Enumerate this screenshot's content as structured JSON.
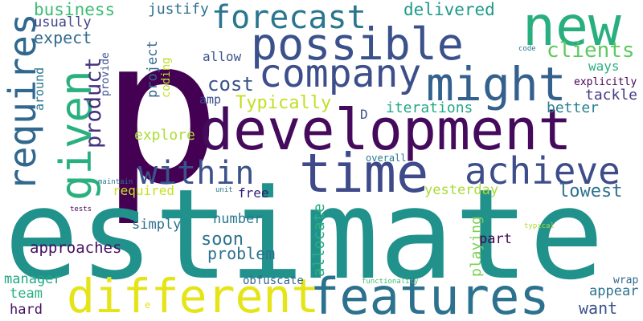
{
  "words": [
    {
      "text": "p",
      "color": "#440154"
    },
    {
      "text": "estimate",
      "color": "#21918c"
    },
    {
      "text": "development",
      "color": "#450a5c"
    },
    {
      "text": "new",
      "color": "#29af7f"
    },
    {
      "text": "possible",
      "color": "#3b518b"
    },
    {
      "text": "time",
      "color": "#3e4a89"
    },
    {
      "text": "features",
      "color": "#2c728e"
    },
    {
      "text": "different",
      "color": "#e5e419"
    },
    {
      "text": "might",
      "color": "#34608d"
    },
    {
      "text": "company",
      "color": "#3c4f8a"
    },
    {
      "text": "given",
      "color": "#2ab07f"
    },
    {
      "text": "requires",
      "color": "#31688e"
    },
    {
      "text": "achieve",
      "color": "#3d4d8a"
    },
    {
      "text": "within",
      "color": "#3b528b"
    },
    {
      "text": "forecast",
      "color": "#2a768e"
    },
    {
      "text": "clients",
      "color": "#5ec962"
    },
    {
      "text": "product",
      "color": "#46327e"
    },
    {
      "text": "cost",
      "color": "#3b528b"
    },
    {
      "text": "lowest",
      "color": "#2c718e"
    },
    {
      "text": "business",
      "color": "#3dbc74"
    },
    {
      "text": "delivered",
      "color": "#1f998a"
    },
    {
      "text": "Typically",
      "color": "#c2df23"
    },
    {
      "text": "iterations",
      "color": "#22a884"
    },
    {
      "text": "expect",
      "color": "#2f6b8e"
    },
    {
      "text": "justify",
      "color": "#2d708e"
    },
    {
      "text": "usually",
      "color": "#3f4788"
    },
    {
      "text": "approaches",
      "color": "#471063"
    },
    {
      "text": "want",
      "color": "#3b528b"
    },
    {
      "text": "soon",
      "color": "#2c738e"
    },
    {
      "text": "problem",
      "color": "#2c728e"
    },
    {
      "text": "explore",
      "color": "#addc30"
    },
    {
      "text": "tackle",
      "color": "#443a83"
    },
    {
      "text": "better",
      "color": "#26828e"
    },
    {
      "text": "ways",
      "color": "#2ab07f"
    },
    {
      "text": "allocate",
      "color": "#2ab07f"
    },
    {
      "text": "playing",
      "color": "#7ad151"
    },
    {
      "text": "project",
      "color": "#31688e"
    },
    {
      "text": "yesterday",
      "color": "#a8db34"
    },
    {
      "text": "required",
      "color": "#c8e020"
    },
    {
      "text": "free",
      "color": "#2d1e72"
    },
    {
      "text": "number",
      "color": "#2a788e"
    },
    {
      "text": "simply",
      "color": "#2d708e"
    },
    {
      "text": "part",
      "color": "#440154"
    },
    {
      "text": "appear",
      "color": "#2c728e"
    },
    {
      "text": "manager",
      "color": "#22a884"
    },
    {
      "text": "team",
      "color": "#29af7f"
    },
    {
      "text": "hard",
      "color": "#471063"
    },
    {
      "text": "wrap",
      "color": "#31688e"
    },
    {
      "text": "allow",
      "color": "#3b528b"
    },
    {
      "text": "amp",
      "color": "#3e4a89"
    },
    {
      "text": "coding",
      "color": "#bddf26"
    },
    {
      "text": "provide",
      "color": "#3b528b"
    },
    {
      "text": "around",
      "color": "#2a788e"
    },
    {
      "text": "explicitly",
      "color": "#440154"
    },
    {
      "text": "overall",
      "color": "#2a788e"
    },
    {
      "text": "obfuscate",
      "color": "#31688e"
    },
    {
      "text": "D",
      "color": "#3b528b"
    },
    {
      "text": "e",
      "color": "#e5e419"
    },
    {
      "text": "code",
      "color": "#2a788e"
    },
    {
      "text": "maintain",
      "color": "#2a788e"
    },
    {
      "text": "unit",
      "color": "#2a788e"
    },
    {
      "text": "tests",
      "color": "#440154"
    },
    {
      "text": "typical",
      "color": "#a8db34"
    },
    {
      "text": "functionality",
      "color": "#3dbc74"
    }
  ]
}
